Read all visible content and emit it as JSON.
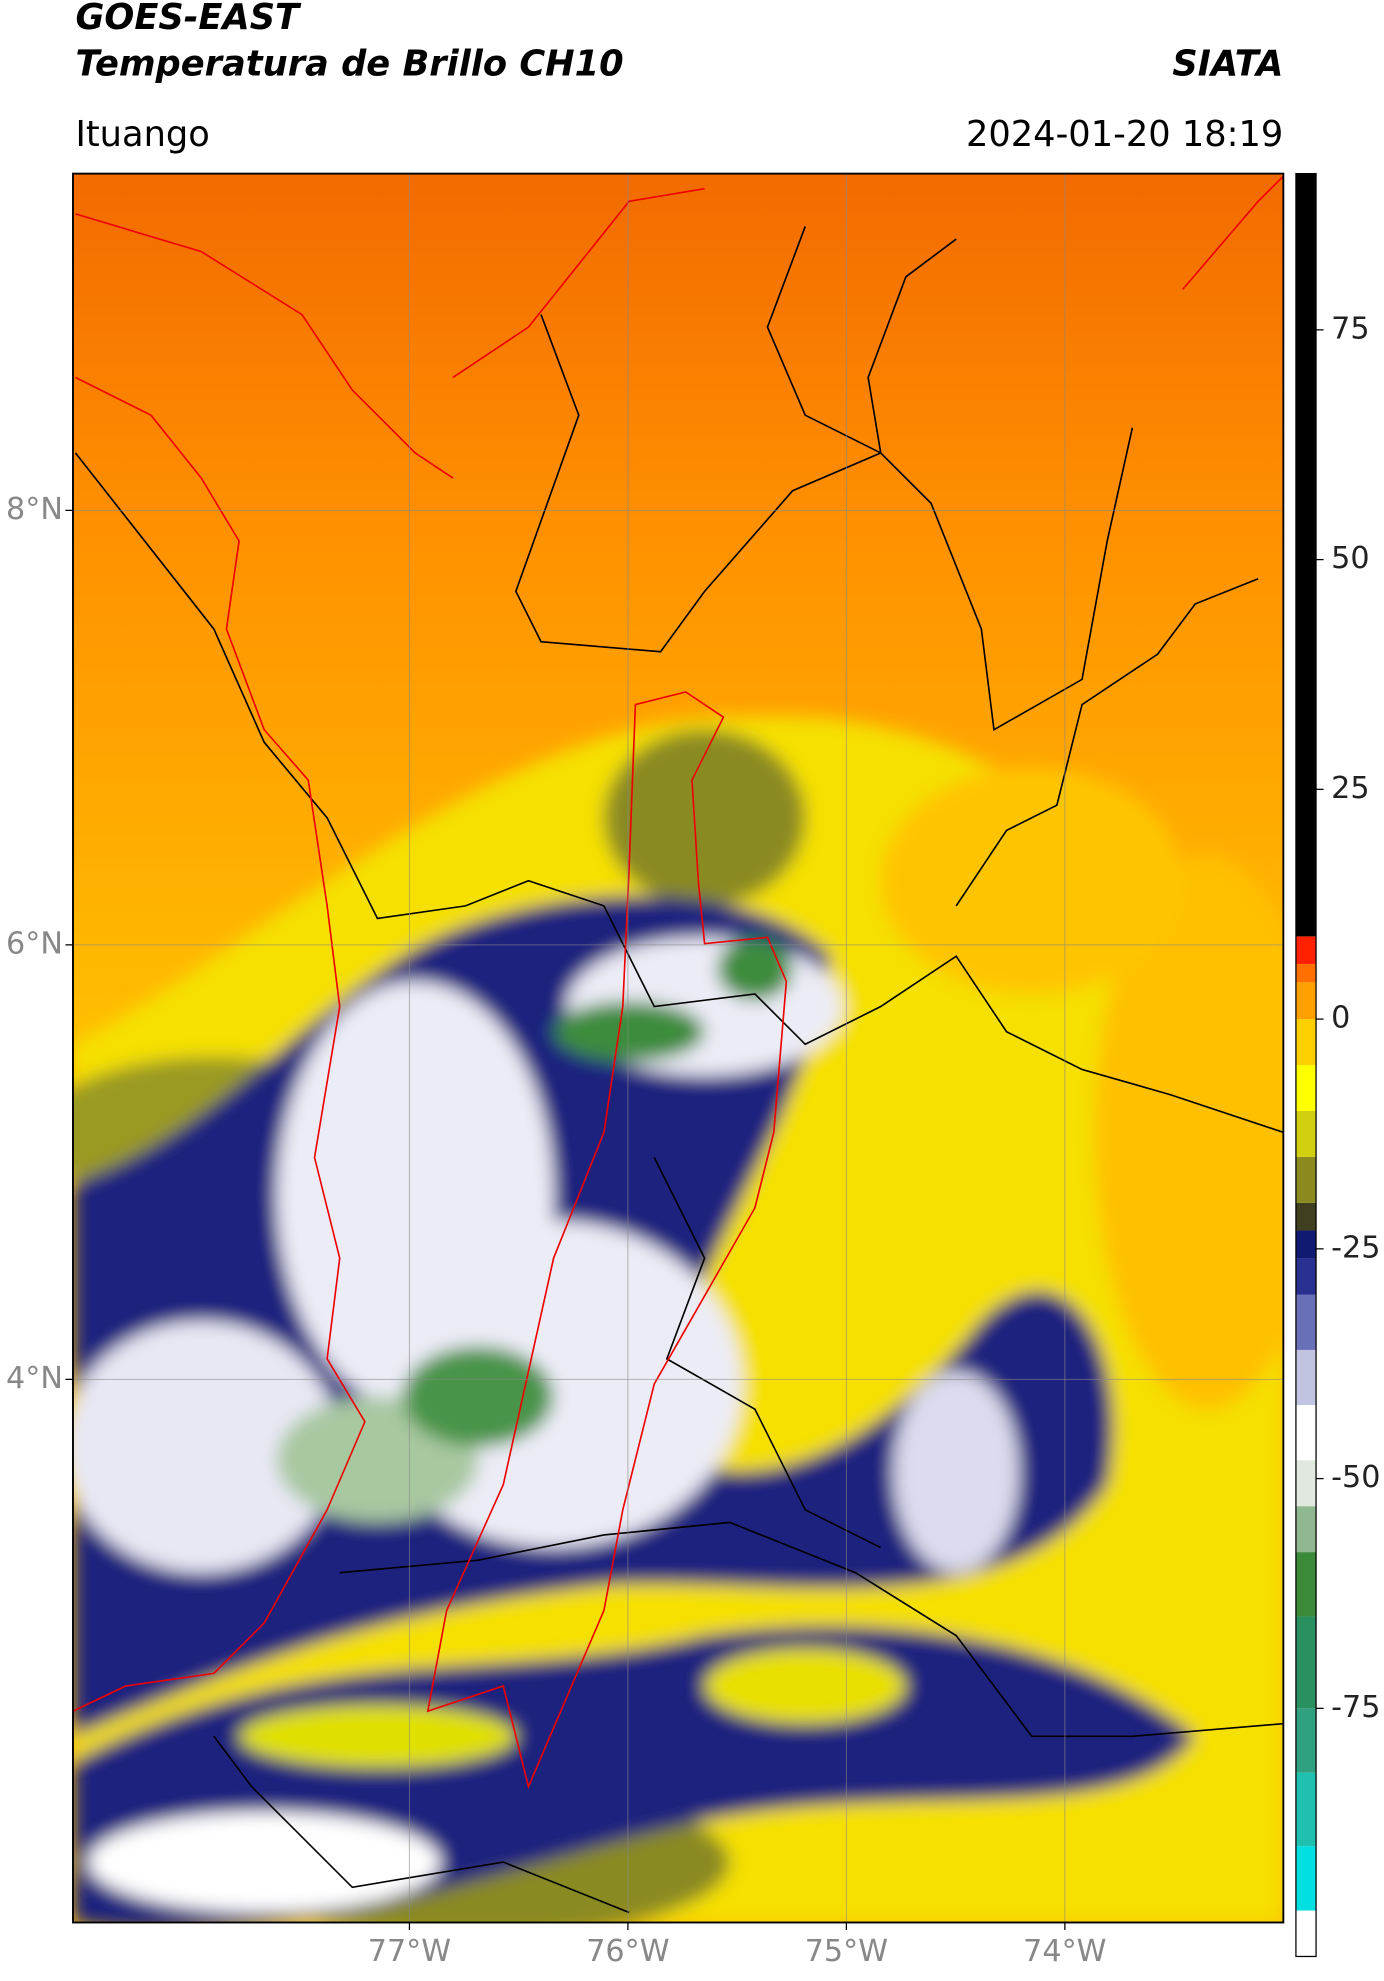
{
  "header": {
    "title": "GOES-EAST",
    "subtitle": "Temperatura de Brillo CH10",
    "brand": "SIATA",
    "location": "Ituango",
    "datetime": "2024-01-20 18:19"
  },
  "map": {
    "xlim": [
      -78.54,
      -73.0
    ],
    "ylim": [
      1.5,
      9.55
    ],
    "xticks": [
      {
        "value": -77,
        "label": "77°W"
      },
      {
        "value": -76,
        "label": "76°W"
      },
      {
        "value": -75,
        "label": "75°W"
      },
      {
        "value": -74,
        "label": "74°W"
      }
    ],
    "yticks": [
      {
        "value": 8,
        "label": "8°N"
      },
      {
        "value": 6,
        "label": "6°N"
      },
      {
        "value": 4,
        "label": "4°N"
      }
    ],
    "grid": true
  },
  "colorbar": {
    "lim": [
      -102,
      92
    ],
    "ticks": [
      75,
      50,
      25,
      0,
      -25,
      -50,
      -75
    ],
    "stops": [
      {
        "value": -102,
        "color": "#ffffff"
      },
      {
        "value": -97,
        "color": "#00e0e0"
      },
      {
        "value": -90,
        "color": "#20c0b0"
      },
      {
        "value": -82,
        "color": "#30a080"
      },
      {
        "value": -75,
        "color": "#2a9060"
      },
      {
        "value": -65,
        "color": "#3a8a3a"
      },
      {
        "value": -58,
        "color": "#90b890"
      },
      {
        "value": -53,
        "color": "#e0e8e0"
      },
      {
        "value": -48,
        "color": "#ffffff"
      },
      {
        "value": -42,
        "color": "#c0c4e0"
      },
      {
        "value": -36,
        "color": "#6a70b8"
      },
      {
        "value": -30,
        "color": "#2a3090"
      },
      {
        "value": -26,
        "color": "#101a70"
      },
      {
        "value": -23,
        "color": "#404020"
      },
      {
        "value": -20,
        "color": "#8a8a20"
      },
      {
        "value": -15,
        "color": "#d0d010"
      },
      {
        "value": -10,
        "color": "#ffff00"
      },
      {
        "value": -5,
        "color": "#ffd000"
      },
      {
        "value": 0,
        "color": "#ffa000"
      },
      {
        "value": 4,
        "color": "#ff7000"
      },
      {
        "value": 6,
        "color": "#ff2000"
      },
      {
        "value": 9,
        "color": "#000000"
      }
    ]
  }
}
